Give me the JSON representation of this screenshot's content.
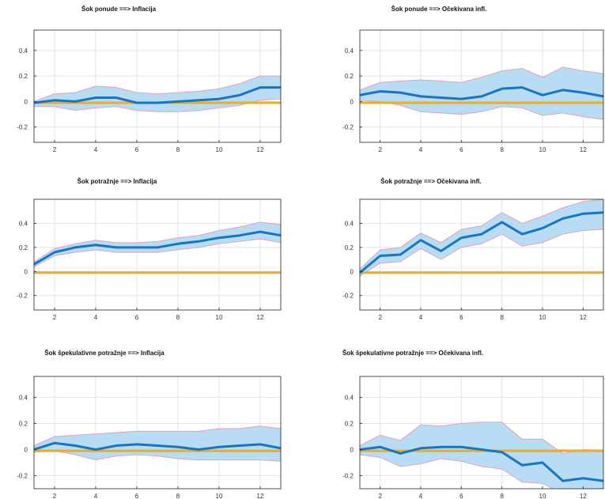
{
  "colors": {
    "band_fill": "#b7dcf4",
    "band_edge": "#e79aba",
    "median_line": "#1874c6",
    "zero_line": "#f0ac1c",
    "grid": "#e3e3e3",
    "axes": "#222222"
  },
  "chart_data": [
    {
      "type": "line",
      "title": "Šok ponude ==> Inflacija",
      "x": [
        1,
        2,
        3,
        4,
        5,
        6,
        7,
        8,
        9,
        10,
        11,
        12,
        13
      ],
      "xticks": [
        2,
        4,
        6,
        8,
        10,
        12
      ],
      "yticks": [
        0.4,
        0.2,
        0,
        -0.2
      ],
      "ytick_labels": [
        "0.4",
        "0.2",
        "0",
        "-0.2"
      ],
      "xlim": [
        1,
        13
      ],
      "ylim": [
        -0.32,
        0.56
      ],
      "grid": true,
      "series": [
        {
          "role": "upper_band",
          "values": [
            0.0,
            0.06,
            0.07,
            0.12,
            0.11,
            0.07,
            0.06,
            0.07,
            0.08,
            0.1,
            0.14,
            0.2,
            0.2
          ]
        },
        {
          "role": "median",
          "values": [
            -0.01,
            0.01,
            0.0,
            0.03,
            0.03,
            -0.01,
            -0.01,
            0.0,
            0.01,
            0.02,
            0.05,
            0.11,
            0.11
          ]
        },
        {
          "role": "lower_band",
          "values": [
            -0.04,
            -0.04,
            -0.07,
            -0.05,
            -0.04,
            -0.07,
            -0.08,
            -0.08,
            -0.07,
            -0.05,
            -0.03,
            0.01,
            0.02
          ]
        },
        {
          "role": "zero_line",
          "values": [
            -0.01,
            -0.01,
            -0.01,
            -0.01,
            -0.01,
            -0.01,
            -0.01,
            -0.01,
            -0.01,
            -0.01,
            -0.01,
            -0.01,
            -0.01
          ]
        }
      ]
    },
    {
      "type": "line",
      "title": "Šok ponude ==> Očekivana infl.",
      "x": [
        1,
        2,
        3,
        4,
        5,
        6,
        7,
        8,
        9,
        10,
        11,
        12,
        13
      ],
      "xticks": [
        2,
        4,
        6,
        8,
        10,
        12
      ],
      "yticks": [
        0.4,
        0.2,
        0,
        -0.2
      ],
      "ytick_labels": [
        "0.4",
        "0.2",
        "0",
        "-0.2"
      ],
      "xlim": [
        1,
        13
      ],
      "ylim": [
        -0.32,
        0.56
      ],
      "grid": true,
      "series": [
        {
          "role": "upper_band",
          "values": [
            0.09,
            0.15,
            0.16,
            0.17,
            0.16,
            0.15,
            0.19,
            0.24,
            0.26,
            0.19,
            0.27,
            0.24,
            0.22
          ]
        },
        {
          "role": "median",
          "values": [
            0.05,
            0.08,
            0.07,
            0.04,
            0.03,
            0.02,
            0.04,
            0.1,
            0.11,
            0.05,
            0.09,
            0.07,
            0.04
          ]
        },
        {
          "role": "lower_band",
          "values": [
            0.01,
            0.0,
            -0.03,
            -0.08,
            -0.09,
            -0.1,
            -0.08,
            -0.04,
            -0.05,
            -0.11,
            -0.09,
            -0.12,
            -0.14
          ]
        },
        {
          "role": "zero_line",
          "values": [
            -0.01,
            -0.01,
            -0.01,
            -0.01,
            -0.01,
            -0.01,
            -0.01,
            -0.01,
            -0.01,
            -0.01,
            -0.01,
            -0.01,
            -0.01
          ]
        }
      ]
    },
    {
      "type": "line",
      "title": "Šok potražnje ==> Inflacija",
      "x": [
        1,
        2,
        3,
        4,
        5,
        6,
        7,
        8,
        9,
        10,
        11,
        12,
        13
      ],
      "xticks": [
        2,
        4,
        6,
        8,
        10,
        12
      ],
      "yticks": [
        0.4,
        0.2,
        0,
        -0.2
      ],
      "ytick_labels": [
        "0.4",
        "0.2",
        "0",
        "-0.2"
      ],
      "xlim": [
        1,
        13
      ],
      "ylim": [
        -0.32,
        0.6
      ],
      "grid": true,
      "series": [
        {
          "role": "upper_band",
          "values": [
            0.08,
            0.19,
            0.23,
            0.26,
            0.24,
            0.24,
            0.25,
            0.28,
            0.3,
            0.34,
            0.37,
            0.41,
            0.39
          ]
        },
        {
          "role": "median",
          "values": [
            0.06,
            0.16,
            0.2,
            0.22,
            0.2,
            0.2,
            0.2,
            0.23,
            0.25,
            0.28,
            0.3,
            0.33,
            0.3
          ]
        },
        {
          "role": "lower_band",
          "values": [
            0.04,
            0.13,
            0.16,
            0.18,
            0.16,
            0.16,
            0.16,
            0.18,
            0.2,
            0.23,
            0.25,
            0.27,
            0.24
          ]
        },
        {
          "role": "zero_line",
          "values": [
            -0.01,
            -0.01,
            -0.01,
            -0.01,
            -0.01,
            -0.01,
            -0.01,
            -0.01,
            -0.01,
            -0.01,
            -0.01,
            -0.01,
            -0.01
          ]
        }
      ]
    },
    {
      "type": "line",
      "title": "Šok potražnje ==> Očekivana infl.",
      "x": [
        1,
        2,
        3,
        4,
        5,
        6,
        7,
        8,
        9,
        10,
        11,
        12,
        13
      ],
      "xticks": [
        2,
        4,
        6,
        8,
        10,
        12
      ],
      "yticks": [
        0.4,
        0.2,
        0,
        -0.2
      ],
      "ytick_labels": [
        "0.4",
        "0.2",
        "0",
        "-0.2"
      ],
      "xlim": [
        1,
        13
      ],
      "ylim": [
        -0.32,
        0.6
      ],
      "grid": true,
      "series": [
        {
          "role": "upper_band",
          "values": [
            0.02,
            0.18,
            0.2,
            0.32,
            0.24,
            0.35,
            0.38,
            0.49,
            0.4,
            0.46,
            0.53,
            0.58,
            0.6
          ]
        },
        {
          "role": "median",
          "values": [
            -0.01,
            0.13,
            0.14,
            0.26,
            0.17,
            0.28,
            0.31,
            0.41,
            0.31,
            0.36,
            0.44,
            0.48,
            0.49
          ]
        },
        {
          "role": "lower_band",
          "values": [
            -0.04,
            0.07,
            0.08,
            0.19,
            0.1,
            0.2,
            0.23,
            0.31,
            0.21,
            0.24,
            0.31,
            0.34,
            0.35
          ]
        },
        {
          "role": "zero_line",
          "values": [
            -0.01,
            -0.01,
            -0.01,
            -0.01,
            -0.01,
            -0.01,
            -0.01,
            -0.01,
            -0.01,
            -0.01,
            -0.01,
            -0.01,
            -0.01
          ]
        }
      ]
    },
    {
      "type": "line",
      "title": "Šok špekulativne potražnje ==> Inflacija",
      "x": [
        1,
        2,
        3,
        4,
        5,
        6,
        7,
        8,
        9,
        10,
        11,
        12,
        13
      ],
      "xticks": [
        2,
        4,
        6,
        8,
        10,
        12
      ],
      "yticks": [
        0.4,
        0.2,
        0,
        -0.2
      ],
      "ytick_labels": [
        "0.4",
        "0.2",
        "0",
        "-0.2"
      ],
      "xlim": [
        1,
        13
      ],
      "ylim": [
        -0.3,
        0.56
      ],
      "grid": true,
      "series": [
        {
          "role": "upper_band",
          "values": [
            0.03,
            0.1,
            0.11,
            0.12,
            0.13,
            0.14,
            0.14,
            0.14,
            0.14,
            0.16,
            0.16,
            0.18,
            0.16
          ]
        },
        {
          "role": "median",
          "values": [
            0.0,
            0.05,
            0.03,
            0.0,
            0.03,
            0.04,
            0.03,
            0.02,
            0.0,
            0.02,
            0.03,
            0.04,
            0.01
          ]
        },
        {
          "role": "lower_band",
          "values": [
            -0.02,
            -0.01,
            -0.04,
            -0.08,
            -0.05,
            -0.04,
            -0.05,
            -0.07,
            -0.08,
            -0.08,
            -0.08,
            -0.08,
            -0.09
          ]
        },
        {
          "role": "zero_line",
          "values": [
            -0.01,
            -0.01,
            -0.01,
            -0.01,
            -0.01,
            -0.01,
            -0.01,
            -0.01,
            -0.01,
            -0.01,
            -0.01,
            -0.01,
            -0.01
          ]
        }
      ]
    },
    {
      "type": "line",
      "title": "Šok špekulativne potražnje ==> Očekivana infl.",
      "x": [
        1,
        2,
        3,
        4,
        5,
        6,
        7,
        8,
        9,
        10,
        11,
        12,
        13
      ],
      "xticks": [
        2,
        4,
        6,
        8,
        10,
        12
      ],
      "yticks": [
        0.4,
        0.2,
        0,
        -0.2
      ],
      "ytick_labels": [
        "0.4",
        "0.2",
        "0",
        "-0.2"
      ],
      "xlim": [
        1,
        13
      ],
      "ylim": [
        -0.3,
        0.56
      ],
      "grid": true,
      "series": [
        {
          "role": "upper_band",
          "values": [
            0.03,
            0.11,
            0.07,
            0.19,
            0.18,
            0.2,
            0.21,
            0.21,
            0.08,
            0.08,
            -0.03,
            0.0,
            -0.01
          ]
        },
        {
          "role": "median",
          "values": [
            0.0,
            0.02,
            -0.03,
            0.01,
            0.02,
            0.02,
            0.0,
            -0.02,
            -0.12,
            -0.1,
            -0.24,
            -0.22,
            -0.24
          ]
        },
        {
          "role": "lower_band",
          "values": [
            -0.04,
            -0.06,
            -0.13,
            -0.11,
            -0.07,
            -0.09,
            -0.13,
            -0.15,
            -0.25,
            -0.26,
            -0.34,
            -0.36,
            -0.38
          ]
        },
        {
          "role": "zero_line",
          "values": [
            -0.01,
            -0.01,
            -0.01,
            -0.01,
            -0.01,
            -0.01,
            -0.01,
            -0.01,
            -0.01,
            -0.01,
            -0.01,
            -0.01,
            -0.01
          ]
        }
      ]
    }
  ]
}
